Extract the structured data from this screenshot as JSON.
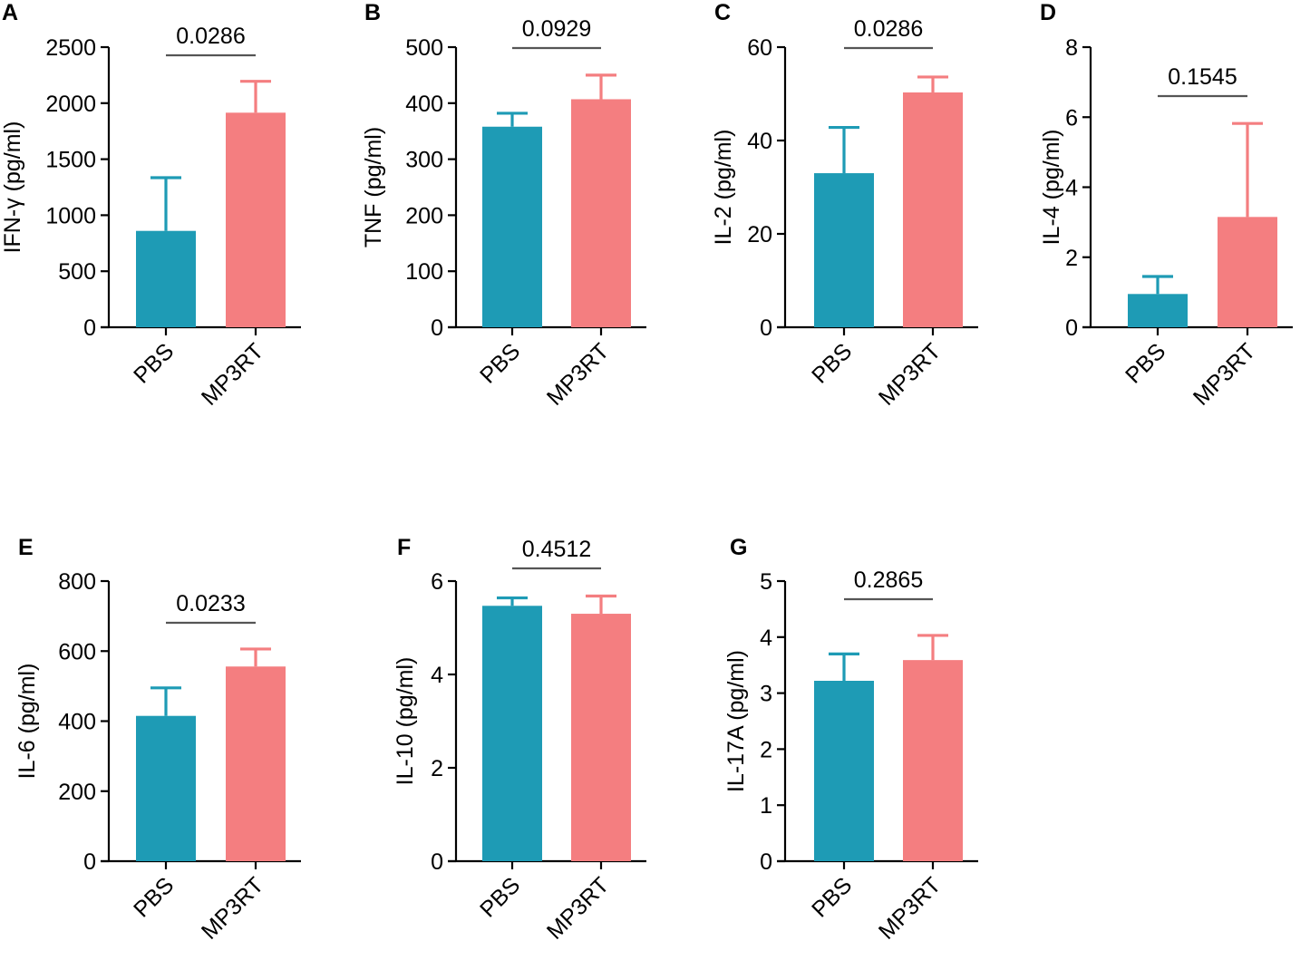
{
  "figure_colors": {
    "PBS": "#1e9bb5",
    "MP3RT": "#f47e80",
    "significance_line": "#555555"
  },
  "chart_data": [
    {
      "panel": "A",
      "type": "bar",
      "ylabel": "IFN-γ (pg/ml)",
      "ylim": [
        0,
        2500
      ],
      "yticks": [
        0,
        500,
        1000,
        1500,
        2000,
        2500
      ],
      "categories": [
        "PBS",
        "MP3RT"
      ],
      "values": [
        860,
        1915
      ],
      "errors": [
        475,
        280
      ],
      "pvalue": "0.0286"
    },
    {
      "panel": "B",
      "type": "bar",
      "ylabel": "TNF (pg/ml)",
      "ylim": [
        0,
        500
      ],
      "yticks": [
        0,
        100,
        200,
        300,
        400,
        500
      ],
      "categories": [
        "PBS",
        "MP3RT"
      ],
      "values": [
        358,
        407
      ],
      "errors": [
        24,
        43
      ],
      "pvalue": "0.0929"
    },
    {
      "panel": "C",
      "type": "bar",
      "ylabel": "IL-2 (pg/ml)",
      "ylim": [
        0,
        60
      ],
      "yticks": [
        0,
        20,
        40,
        60
      ],
      "categories": [
        "PBS",
        "MP3RT"
      ],
      "values": [
        33,
        50.3
      ],
      "errors": [
        9.8,
        3.3
      ],
      "pvalue": "0.0286"
    },
    {
      "panel": "D",
      "type": "bar",
      "ylabel": "IL-4 (pg/ml)",
      "ylim": [
        0,
        8
      ],
      "yticks": [
        0,
        2,
        4,
        6,
        8
      ],
      "categories": [
        "PBS",
        "MP3RT"
      ],
      "values": [
        0.95,
        3.15
      ],
      "errors": [
        0.5,
        2.67
      ],
      "pvalue": "0.1545"
    },
    {
      "panel": "E",
      "type": "bar",
      "ylabel": "IL-6 (pg/ml)",
      "ylim": [
        0,
        800
      ],
      "yticks": [
        0,
        200,
        400,
        600,
        800
      ],
      "categories": [
        "PBS",
        "MP3RT"
      ],
      "values": [
        415,
        556
      ],
      "errors": [
        80,
        50
      ],
      "pvalue": "0.0233"
    },
    {
      "panel": "F",
      "type": "bar",
      "ylabel": "IL-10 (pg/ml)",
      "ylim": [
        0,
        6
      ],
      "yticks": [
        0,
        2,
        4,
        6
      ],
      "categories": [
        "PBS",
        "MP3RT"
      ],
      "values": [
        5.47,
        5.3
      ],
      "errors": [
        0.17,
        0.38
      ],
      "pvalue": "0.4512"
    },
    {
      "panel": "G",
      "type": "bar",
      "ylabel": "IL-17A (pg/ml)",
      "ylim": [
        0,
        5
      ],
      "yticks": [
        0,
        1,
        2,
        3,
        4,
        5
      ],
      "categories": [
        "PBS",
        "MP3RT"
      ],
      "values": [
        3.22,
        3.59
      ],
      "errors": [
        0.48,
        0.44
      ],
      "pvalue": "0.2865"
    }
  ]
}
